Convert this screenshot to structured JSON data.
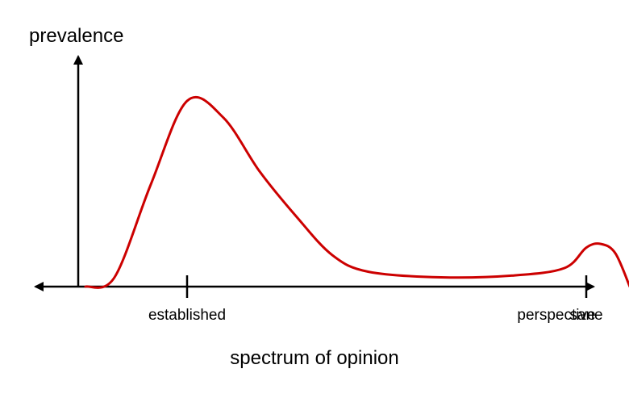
{
  "chart_data": {
    "type": "line",
    "title": "",
    "xlabel": "spectrum of opinion",
    "ylabel": "prevalence",
    "grid": false,
    "legend": "none",
    "axis_color": "#000000",
    "series": [
      {
        "color": "#cc0000",
        "points": [
          [
            0.1,
            0.0
          ],
          [
            0.5,
            0.05
          ],
          [
            1.0,
            0.55
          ],
          [
            1.5,
            1.0
          ],
          [
            2.0,
            0.91
          ],
          [
            2.5,
            0.62
          ],
          [
            3.0,
            0.38
          ],
          [
            3.5,
            0.17
          ],
          [
            4.0,
            0.08
          ],
          [
            5.0,
            0.05
          ],
          [
            6.0,
            0.06
          ],
          [
            6.7,
            0.1
          ],
          [
            7.0,
            0.21
          ],
          [
            7.2,
            0.23
          ],
          [
            7.4,
            0.18
          ],
          [
            7.6,
            0.0
          ]
        ]
      }
    ],
    "ticks": [
      {
        "x": 1.5,
        "label": "established"
      },
      {
        "x": 7.0,
        "label": "sane"
      }
    ],
    "annotation": "perspective",
    "xlim": [
      -1.0,
      9.0
    ],
    "ylim": [
      0.0,
      1.3
    ]
  }
}
